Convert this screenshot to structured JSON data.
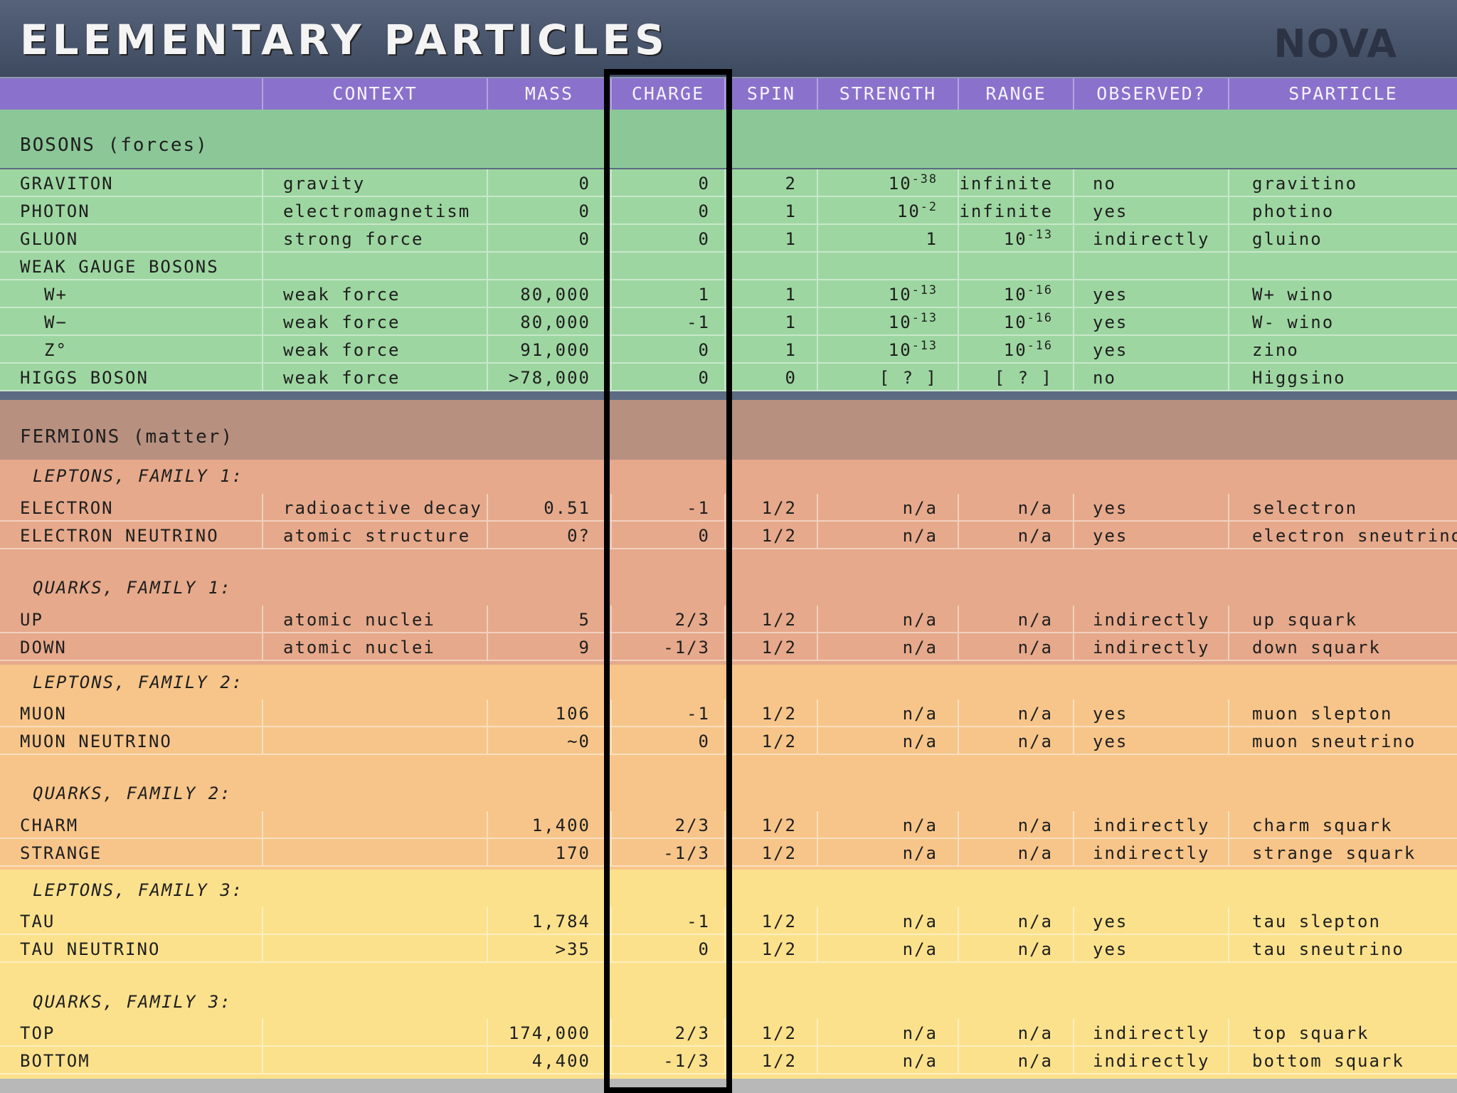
{
  "title": "ELEMENTARY PARTICLES",
  "logo": "NOVA",
  "columns": [
    "CONTEXT",
    "MASS",
    "CHARGE",
    "SPIN",
    "STRENGTH",
    "RANGE",
    "OBSERVED?",
    "SPARTICLE"
  ],
  "colors": {
    "header": "#8a72cc",
    "bosons_head": "#8cc798",
    "bosons": "#9dd6a1",
    "fermions_head": "#b89080",
    "family1": "#e6a98b",
    "family2": "#f7c58a",
    "family3": "#fbe18c",
    "highlight_box": "#000000"
  },
  "bosons": {
    "heading": "BOSONS (forces)",
    "rows": [
      {
        "name": "GRAVITON",
        "context": "gravity",
        "mass": "0",
        "charge": "0",
        "spin": "2",
        "strength": "10",
        "strength_exp": "-38",
        "range": "infinite",
        "observed": "no",
        "sparticle": "gravitino"
      },
      {
        "name": "PHOTON",
        "context": "electromagnetism",
        "mass": "0",
        "charge": "0",
        "spin": "1",
        "strength": "10",
        "strength_exp": "-2",
        "range": "infinite",
        "observed": "yes",
        "sparticle": "photino"
      },
      {
        "name": "GLUON",
        "context": "strong force",
        "mass": "0",
        "charge": "0",
        "spin": "1",
        "strength": "1",
        "range": "10",
        "range_exp": "-13",
        "observed": "indirectly",
        "sparticle": "gluino"
      },
      {
        "name": "WEAK GAUGE BOSONS"
      },
      {
        "name": "W+",
        "indent": true,
        "context": "weak force",
        "mass": "80,000",
        "charge": "1",
        "spin": "1",
        "strength": "10",
        "strength_exp": "-13",
        "range": "10",
        "range_exp": "-16",
        "observed": "yes",
        "sparticle": "W+ wino"
      },
      {
        "name": "W−",
        "indent": true,
        "context": "weak force",
        "mass": "80,000",
        "charge": "-1",
        "spin": "1",
        "strength": "10",
        "strength_exp": "-13",
        "range": "10",
        "range_exp": "-16",
        "observed": "yes",
        "sparticle": "W- wino"
      },
      {
        "name": "Z°",
        "indent": true,
        "context": "weak force",
        "mass": "91,000",
        "charge": "0",
        "spin": "1",
        "strength": "10",
        "strength_exp": "-13",
        "range": "10",
        "range_exp": "-16",
        "observed": "yes",
        "sparticle": "zino"
      },
      {
        "name": "HIGGS BOSON",
        "context": "weak force",
        "mass": ">78,000",
        "charge": "0",
        "spin": "0",
        "strength": "[ ? ]",
        "range": "[ ? ]",
        "observed": "no",
        "sparticle": "Higgsino"
      }
    ]
  },
  "fermions": {
    "heading": "FERMIONS (matter)",
    "groups": [
      {
        "heading": "LEPTONS, FAMILY 1:",
        "rows": [
          {
            "name": "ELECTRON",
            "context": "radioactive decay",
            "mass": "0.51",
            "charge": "-1",
            "spin": "1/2",
            "strength": "n/a",
            "range": "n/a",
            "observed": "yes",
            "sparticle": "selectron"
          },
          {
            "name": "ELECTRON NEUTRINO",
            "context": "atomic structure",
            "mass": "0?",
            "charge": "0",
            "spin": "1/2",
            "strength": "n/a",
            "range": "n/a",
            "observed": "yes",
            "sparticle": "electron sneutrino"
          }
        ]
      },
      {
        "heading": "QUARKS, FAMILY 1:",
        "rows": [
          {
            "name": "UP",
            "context": "atomic nuclei",
            "mass": "5",
            "charge": "2/3",
            "spin": "1/2",
            "strength": "n/a",
            "range": "n/a",
            "observed": "indirectly",
            "sparticle": "up squark"
          },
          {
            "name": "DOWN",
            "context": "atomic nuclei",
            "mass": "9",
            "charge": "-1/3",
            "spin": "1/2",
            "strength": "n/a",
            "range": "n/a",
            "observed": "indirectly",
            "sparticle": "down squark"
          }
        ]
      },
      {
        "heading": "LEPTONS, FAMILY 2:",
        "rows": [
          {
            "name": "MUON",
            "context": "",
            "mass": "106",
            "charge": "-1",
            "spin": "1/2",
            "strength": "n/a",
            "range": "n/a",
            "observed": "yes",
            "sparticle": "muon slepton"
          },
          {
            "name": "MUON NEUTRINO",
            "context": "",
            "mass": "~0",
            "charge": "0",
            "spin": "1/2",
            "strength": "n/a",
            "range": "n/a",
            "observed": "yes",
            "sparticle": "muon sneutrino"
          }
        ]
      },
      {
        "heading": "QUARKS, FAMILY 2:",
        "rows": [
          {
            "name": "CHARM",
            "context": "",
            "mass": "1,400",
            "charge": "2/3",
            "spin": "1/2",
            "strength": "n/a",
            "range": "n/a",
            "observed": "indirectly",
            "sparticle": "charm squark"
          },
          {
            "name": "STRANGE",
            "context": "",
            "mass": "170",
            "charge": "-1/3",
            "spin": "1/2",
            "strength": "n/a",
            "range": "n/a",
            "observed": "indirectly",
            "sparticle": "strange squark"
          }
        ]
      },
      {
        "heading": "LEPTONS, FAMILY 3:",
        "rows": [
          {
            "name": "TAU",
            "context": "",
            "mass": "1,784",
            "charge": "-1",
            "spin": "1/2",
            "strength": "n/a",
            "range": "n/a",
            "observed": "yes",
            "sparticle": "tau slepton"
          },
          {
            "name": "TAU NEUTRINO",
            "context": "",
            "mass": ">35",
            "charge": "0",
            "spin": "1/2",
            "strength": "n/a",
            "range": "n/a",
            "observed": "yes",
            "sparticle": "tau sneutrino"
          }
        ]
      },
      {
        "heading": "QUARKS, FAMILY 3:",
        "rows": [
          {
            "name": "TOP",
            "context": "",
            "mass": "174,000",
            "charge": "2/3",
            "spin": "1/2",
            "strength": "n/a",
            "range": "n/a",
            "observed": "indirectly",
            "sparticle": "top squark"
          },
          {
            "name": "BOTTOM",
            "context": "",
            "mass": "4,400",
            "charge": "-1/3",
            "spin": "1/2",
            "strength": "n/a",
            "range": "n/a",
            "observed": "indirectly",
            "sparticle": "bottom squark"
          }
        ]
      }
    ]
  }
}
